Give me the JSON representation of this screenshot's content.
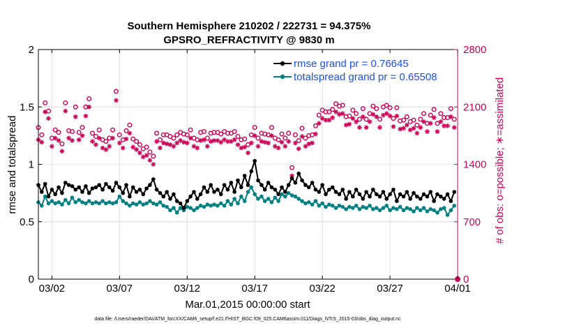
{
  "chart_data": {
    "type": "line",
    "title": "Southern Hemisphere 210202 / 222731 = 94.375%",
    "subtitle": "GPSRO_REFRACTIVITY @ 9830 m",
    "xlabel": "Mar.01,2015 00:00:00 start",
    "ylabel": "rmse and totalspread",
    "y2label": "# of obs: o=possible; ∗=assimilated",
    "footer": "data file: /Users/raeder/DAI/ATM_forcXX/CAM6_setup/f.e21.FHIST_BGC.f09_025.CAM6assim.011/Diags_NTrS_2015-03/obs_diag_output.nc",
    "xlim": [
      0,
      31
    ],
    "ylim": [
      0,
      2
    ],
    "y2lim": [
      0,
      2800
    ],
    "xticks": [
      1,
      6,
      11,
      16,
      21,
      26,
      31
    ],
    "xtick_labels": [
      "03/02",
      "03/07",
      "03/12",
      "03/17",
      "03/22",
      "03/27",
      "04/01"
    ],
    "yticks": [
      0,
      0.5,
      1,
      1.5,
      2
    ],
    "ytick_labels": [
      "0",
      "0.5",
      "1",
      "1.5",
      "2"
    ],
    "y2ticks": [
      0,
      700,
      1400,
      2100,
      2800
    ],
    "y2tick_labels": [
      "0",
      "700",
      "1400",
      "2100",
      "2800"
    ],
    "grid": true,
    "legend_position": "top-right",
    "colors": {
      "rmse": "#000000",
      "totalspread": "#008080",
      "obs": "#cc0055",
      "legend_text": "#1f4fe0"
    },
    "series": [
      {
        "name": "rmse grand pr = 0.76645",
        "axis": "left",
        "marker": "filled-circle",
        "x": [
          0.0,
          0.25,
          0.5,
          0.75,
          1.0,
          1.25,
          1.5,
          1.75,
          2.0,
          2.25,
          2.5,
          2.75,
          3.0,
          3.25,
          3.5,
          3.75,
          4.0,
          4.25,
          4.5,
          4.75,
          5.0,
          5.25,
          5.5,
          5.75,
          6.0,
          6.25,
          6.5,
          6.75,
          7.0,
          7.25,
          7.5,
          7.75,
          8.0,
          8.25,
          8.5,
          8.75,
          9.0,
          9.25,
          9.5,
          9.75,
          10.0,
          10.25,
          10.5,
          10.75,
          11.0,
          11.25,
          11.5,
          11.75,
          12.0,
          12.25,
          12.5,
          12.75,
          13.0,
          13.25,
          13.5,
          13.75,
          14.0,
          14.25,
          14.5,
          14.75,
          15.0,
          15.25,
          15.5,
          15.75,
          16.0,
          16.25,
          16.5,
          16.75,
          17.0,
          17.25,
          17.5,
          17.75,
          18.0,
          18.25,
          18.5,
          18.75,
          19.0,
          19.25,
          19.5,
          19.75,
          20.0,
          20.25,
          20.5,
          20.75,
          21.0,
          21.25,
          21.5,
          21.75,
          22.0,
          22.25,
          22.5,
          22.75,
          23.0,
          23.25,
          23.5,
          23.75,
          24.0,
          24.25,
          24.5,
          24.75,
          25.0,
          25.25,
          25.5,
          25.75,
          26.0,
          26.25,
          26.5,
          26.75,
          27.0,
          27.25,
          27.5,
          27.75,
          28.0,
          28.25,
          28.5,
          28.75,
          29.0,
          29.25,
          29.5,
          29.75,
          30.0,
          30.25,
          30.5,
          30.75
        ],
        "y": [
          0.82,
          0.76,
          0.83,
          0.72,
          0.78,
          0.74,
          0.8,
          0.75,
          0.84,
          0.82,
          0.81,
          0.78,
          0.8,
          0.76,
          0.81,
          0.75,
          0.79,
          0.8,
          0.82,
          0.78,
          0.83,
          0.8,
          0.77,
          0.84,
          0.8,
          0.75,
          0.82,
          0.72,
          0.8,
          0.76,
          0.78,
          0.74,
          0.79,
          0.82,
          0.87,
          0.78,
          0.75,
          0.72,
          0.76,
          0.7,
          0.74,
          0.68,
          0.66,
          0.62,
          0.68,
          0.72,
          0.76,
          0.7,
          0.74,
          0.8,
          0.76,
          0.82,
          0.76,
          0.78,
          0.74,
          0.82,
          0.78,
          0.84,
          0.76,
          0.86,
          0.8,
          0.9,
          0.82,
          0.94,
          1.03,
          0.86,
          0.82,
          0.78,
          0.84,
          0.8,
          0.78,
          0.74,
          0.8,
          0.76,
          0.82,
          0.88,
          0.84,
          0.92,
          0.86,
          0.82,
          0.8,
          0.84,
          0.78,
          0.76,
          0.82,
          0.74,
          0.78,
          0.8,
          0.76,
          0.74,
          0.78,
          0.7,
          0.76,
          0.72,
          0.78,
          0.74,
          0.7,
          0.76,
          0.72,
          0.78,
          0.74,
          0.72,
          0.76,
          0.7,
          0.74,
          0.78,
          0.68,
          0.74,
          0.72,
          0.76,
          0.7,
          0.75,
          0.72,
          0.7,
          0.74,
          0.72,
          0.76,
          0.68,
          0.74,
          0.72,
          0.7,
          0.74,
          0.68,
          0.76
        ]
      },
      {
        "name": "totalspread grand pr = 0.65508",
        "axis": "left",
        "marker": "filled-circle",
        "x": [
          0.0,
          0.25,
          0.5,
          0.75,
          1.0,
          1.25,
          1.5,
          1.75,
          2.0,
          2.25,
          2.5,
          2.75,
          3.0,
          3.25,
          3.5,
          3.75,
          4.0,
          4.25,
          4.5,
          4.75,
          5.0,
          5.25,
          5.5,
          5.75,
          6.0,
          6.25,
          6.5,
          6.75,
          7.0,
          7.25,
          7.5,
          7.75,
          8.0,
          8.25,
          8.5,
          8.75,
          9.0,
          9.25,
          9.5,
          9.75,
          10.0,
          10.25,
          10.5,
          10.75,
          11.0,
          11.25,
          11.5,
          11.75,
          12.0,
          12.25,
          12.5,
          12.75,
          13.0,
          13.25,
          13.5,
          13.75,
          14.0,
          14.25,
          14.5,
          14.75,
          15.0,
          15.25,
          15.5,
          15.75,
          16.0,
          16.25,
          16.5,
          16.75,
          17.0,
          17.25,
          17.5,
          17.75,
          18.0,
          18.25,
          18.5,
          18.75,
          19.0,
          19.25,
          19.5,
          19.75,
          20.0,
          20.25,
          20.5,
          20.75,
          21.0,
          21.25,
          21.5,
          21.75,
          22.0,
          22.25,
          22.5,
          22.75,
          23.0,
          23.25,
          23.5,
          23.75,
          24.0,
          24.25,
          24.5,
          24.75,
          25.0,
          25.25,
          25.5,
          25.75,
          26.0,
          26.25,
          26.5,
          26.75,
          27.0,
          27.25,
          27.5,
          27.75,
          28.0,
          28.25,
          28.5,
          28.75,
          29.0,
          29.25,
          29.5,
          29.75,
          30.0,
          30.25,
          30.5,
          30.75
        ],
        "y": [
          0.67,
          0.64,
          0.72,
          0.66,
          0.68,
          0.66,
          0.67,
          0.65,
          0.69,
          0.66,
          0.71,
          0.67,
          0.69,
          0.67,
          0.66,
          0.68,
          0.66,
          0.67,
          0.66,
          0.68,
          0.66,
          0.67,
          0.66,
          0.67,
          0.72,
          0.68,
          0.66,
          0.64,
          0.66,
          0.65,
          0.67,
          0.65,
          0.66,
          0.68,
          0.66,
          0.65,
          0.67,
          0.64,
          0.63,
          0.6,
          0.62,
          0.58,
          0.62,
          0.6,
          0.63,
          0.62,
          0.6,
          0.62,
          0.64,
          0.63,
          0.65,
          0.64,
          0.65,
          0.64,
          0.66,
          0.64,
          0.68,
          0.65,
          0.7,
          0.66,
          0.72,
          0.68,
          0.76,
          0.8,
          0.74,
          0.7,
          0.72,
          0.68,
          0.7,
          0.67,
          0.71,
          0.68,
          0.74,
          0.72,
          0.75,
          0.73,
          0.72,
          0.7,
          0.68,
          0.66,
          0.67,
          0.65,
          0.68,
          0.64,
          0.66,
          0.63,
          0.65,
          0.64,
          0.62,
          0.64,
          0.63,
          0.61,
          0.63,
          0.62,
          0.64,
          0.61,
          0.63,
          0.62,
          0.64,
          0.61,
          0.62,
          0.6,
          0.62,
          0.64,
          0.6,
          0.62,
          0.61,
          0.63,
          0.6,
          0.62,
          0.61,
          0.59,
          0.62,
          0.6,
          0.62,
          0.59,
          0.61,
          0.6,
          0.58,
          0.61,
          0.62,
          0.56,
          0.6,
          0.64
        ]
      },
      {
        "name": "possible",
        "axis": "right",
        "marker": "open-circle",
        "x": [
          0.0,
          0.25,
          0.5,
          0.75,
          1.0,
          1.25,
          1.5,
          1.75,
          2.0,
          2.25,
          2.5,
          2.75,
          3.0,
          3.25,
          3.5,
          3.75,
          4.0,
          4.25,
          4.5,
          4.75,
          5.0,
          5.25,
          5.5,
          5.75,
          6.0,
          6.25,
          6.5,
          6.75,
          7.0,
          7.25,
          7.5,
          7.75,
          8.0,
          8.25,
          8.5,
          8.75,
          9.0,
          9.25,
          9.5,
          9.75,
          10.0,
          10.25,
          10.5,
          10.75,
          11.0,
          11.25,
          11.5,
          11.75,
          12.0,
          12.25,
          12.5,
          12.75,
          13.0,
          13.25,
          13.5,
          13.75,
          14.0,
          14.25,
          14.5,
          14.75,
          15.0,
          15.25,
          15.5,
          15.75,
          16.0,
          16.25,
          16.5,
          16.75,
          17.0,
          17.25,
          17.5,
          17.75,
          18.0,
          18.25,
          18.5,
          18.75,
          19.0,
          19.25,
          19.5,
          19.75,
          20.0,
          20.25,
          20.5,
          20.75,
          21.0,
          21.25,
          21.5,
          21.75,
          22.0,
          22.25,
          22.5,
          22.75,
          23.0,
          23.25,
          23.5,
          23.75,
          24.0,
          24.25,
          24.5,
          24.75,
          25.0,
          25.25,
          25.5,
          25.75,
          26.0,
          26.25,
          26.5,
          26.75,
          27.0,
          27.25,
          27.5,
          27.75,
          28.0,
          28.25,
          28.5,
          28.75,
          29.0,
          29.25,
          29.5,
          29.75,
          30.0,
          30.25,
          30.5,
          30.75
        ],
        "y": [
          1850,
          1760,
          2150,
          2050,
          1720,
          1820,
          1790,
          1650,
          2150,
          1810,
          1800,
          2100,
          1790,
          1850,
          2100,
          2200,
          1780,
          1740,
          1820,
          1700,
          1680,
          1720,
          1820,
          2290,
          1760,
          1700,
          1810,
          1880,
          1710,
          1680,
          1640,
          1590,
          1610,
          1550,
          1500,
          1780,
          1700,
          1760,
          1760,
          1740,
          1720,
          1760,
          1790,
          1770,
          1760,
          1820,
          1720,
          1700,
          1790,
          1800,
          1720,
          1780,
          1790,
          1790,
          1770,
          1800,
          1780,
          1780,
          1800,
          1740,
          1700,
          1710,
          1640,
          1760,
          1850,
          1720,
          1780,
          1770,
          1760,
          1850,
          1720,
          1700,
          1770,
          1720,
          1780,
          1360,
          1760,
          1690,
          1840,
          1720,
          1750,
          1760,
          1870,
          2000,
          2060,
          2040,
          2040,
          2070,
          2140,
          2110,
          2120,
          1980,
          1990,
          2060,
          2020,
          1950,
          2080,
          1950,
          2020,
          2110,
          2080,
          1950,
          2100,
          2120,
          2090,
          1960,
          2090,
          1930,
          1940,
          1980,
          1920,
          1940,
          1880,
          1950,
          2020,
          1900,
          2000,
          2070,
          1900,
          2020,
          1970,
          1970,
          2080,
          1950
        ]
      },
      {
        "name": "assimilated",
        "axis": "right",
        "marker": "asterisk",
        "x": [
          0.0,
          0.25,
          0.5,
          0.75,
          1.0,
          1.25,
          1.5,
          1.75,
          2.0,
          2.25,
          2.5,
          2.75,
          3.0,
          3.25,
          3.5,
          3.75,
          4.0,
          4.25,
          4.5,
          4.75,
          5.0,
          5.25,
          5.5,
          5.75,
          6.0,
          6.25,
          6.5,
          6.75,
          7.0,
          7.25,
          7.5,
          7.75,
          8.0,
          8.25,
          8.5,
          8.75,
          9.0,
          9.25,
          9.5,
          9.75,
          10.0,
          10.25,
          10.5,
          10.75,
          11.0,
          11.25,
          11.5,
          11.75,
          12.0,
          12.25,
          12.5,
          12.75,
          13.0,
          13.25,
          13.5,
          13.75,
          14.0,
          14.25,
          14.5,
          14.75,
          15.0,
          15.25,
          15.5,
          15.75,
          16.0,
          16.25,
          16.5,
          16.75,
          17.0,
          17.25,
          17.5,
          17.75,
          18.0,
          18.25,
          18.5,
          18.75,
          19.0,
          19.25,
          19.5,
          19.75,
          20.0,
          20.25,
          20.5,
          20.75,
          21.0,
          21.25,
          21.5,
          21.75,
          22.0,
          22.25,
          22.5,
          22.75,
          23.0,
          23.25,
          23.5,
          23.75,
          24.0,
          24.25,
          24.5,
          24.75,
          25.0,
          25.25,
          25.5,
          25.75,
          26.0,
          26.25,
          26.5,
          26.75,
          27.0,
          27.25,
          27.5,
          27.75,
          28.0,
          28.25,
          28.5,
          28.75,
          29.0,
          29.25,
          29.5,
          29.75,
          30.0,
          30.25,
          30.5,
          30.75
        ],
        "y": [
          1700,
          1670,
          2040,
          1960,
          1620,
          1720,
          1690,
          1560,
          2050,
          1720,
          1690,
          1980,
          1700,
          1750,
          1990,
          2100,
          1680,
          1640,
          1720,
          1600,
          1580,
          1620,
          1720,
          2180,
          1660,
          1600,
          1710,
          1780,
          1610,
          1580,
          1540,
          1490,
          1510,
          1450,
          1400,
          1680,
          1600,
          1660,
          1650,
          1640,
          1620,
          1660,
          1690,
          1670,
          1660,
          1720,
          1620,
          1600,
          1690,
          1700,
          1620,
          1680,
          1690,
          1690,
          1670,
          1700,
          1680,
          1680,
          1700,
          1640,
          1600,
          1610,
          1540,
          1660,
          1750,
          1620,
          1680,
          1670,
          1660,
          1750,
          1620,
          1600,
          1670,
          1620,
          1680,
          1260,
          1660,
          1590,
          1740,
          1620,
          1650,
          1660,
          1770,
          1900,
          1960,
          1940,
          1940,
          1970,
          2040,
          2010,
          2020,
          1880,
          1890,
          1960,
          1920,
          1850,
          1980,
          1850,
          1920,
          2010,
          1980,
          1850,
          2000,
          2020,
          1990,
          1860,
          1990,
          1830,
          1840,
          1880,
          1820,
          1840,
          1780,
          1850,
          1920,
          1800,
          1900,
          1970,
          1800,
          1920,
          1870,
          1870,
          1980,
          1850
        ]
      }
    ],
    "end_marker": {
      "x": 31,
      "y2": 0
    }
  }
}
